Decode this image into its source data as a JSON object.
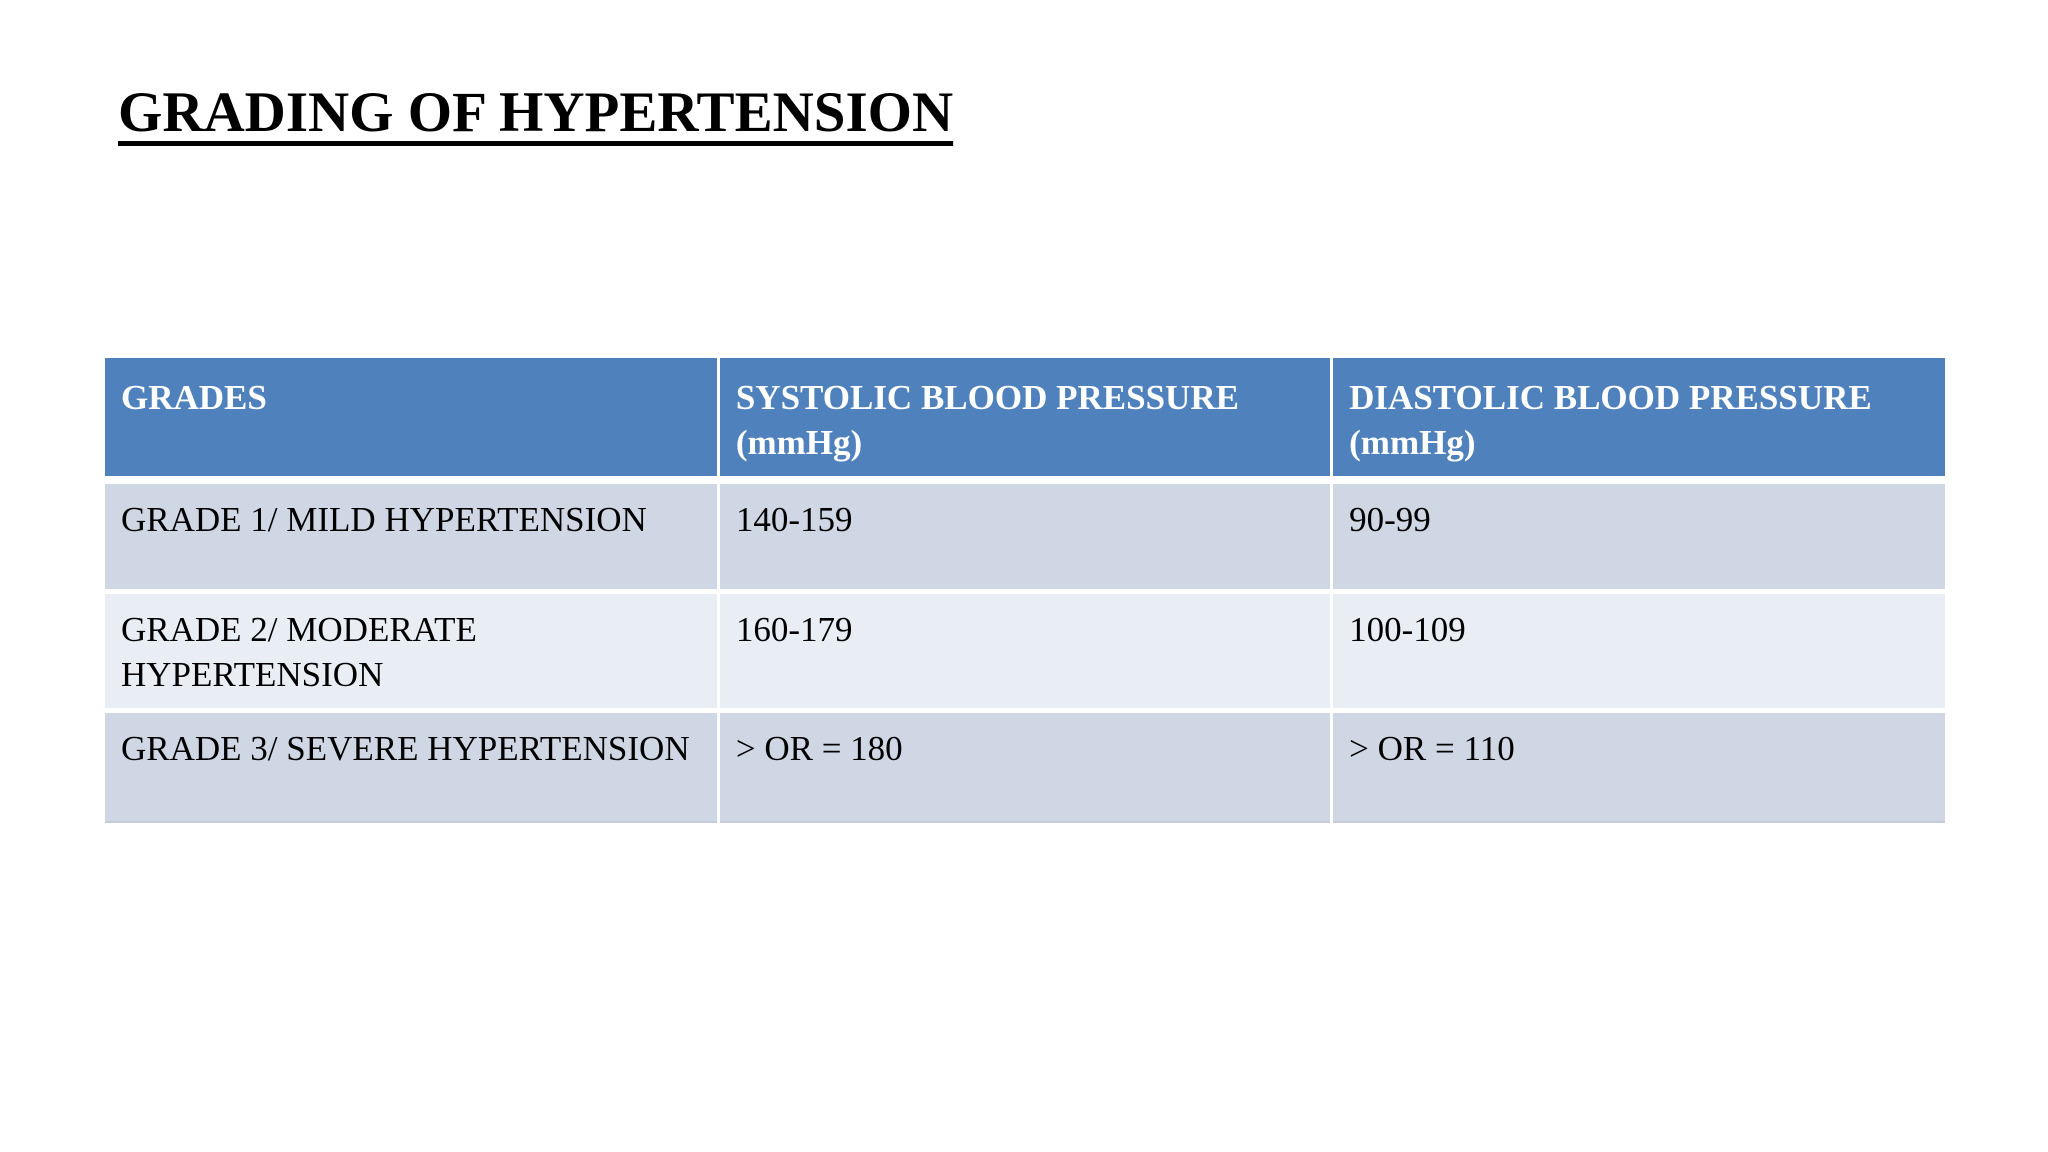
{
  "slide": {
    "title": "GRADING OF HYPERTENSION"
  },
  "table": {
    "columns": [
      "GRADES",
      "SYSTOLIC BLOOD PRESSURE (mmHg)",
      "DIASTOLIC BLOOD PRESSURE (mmHg)"
    ],
    "rows": [
      [
        "GRADE 1/ MILD HYPERTENSION",
        "140-159",
        "90-99"
      ],
      [
        "GRADE 2/ MODERATE HYPERTENSION",
        "160-179",
        "100-109"
      ],
      [
        "GRADE 3/ SEVERE HYPERTENSION",
        "> OR = 180",
        "> OR = 110"
      ]
    ]
  },
  "theme": {
    "header-bg": "#4f81bd",
    "band-odd": "#cfd6e4",
    "band-even": "#e9edf4",
    "header-text": "#ffffff",
    "body-text": "#000000",
    "grid-line": "#ffffff",
    "table-bottom-line": "#c3cbdb",
    "page-bg": "#ffffff"
  }
}
